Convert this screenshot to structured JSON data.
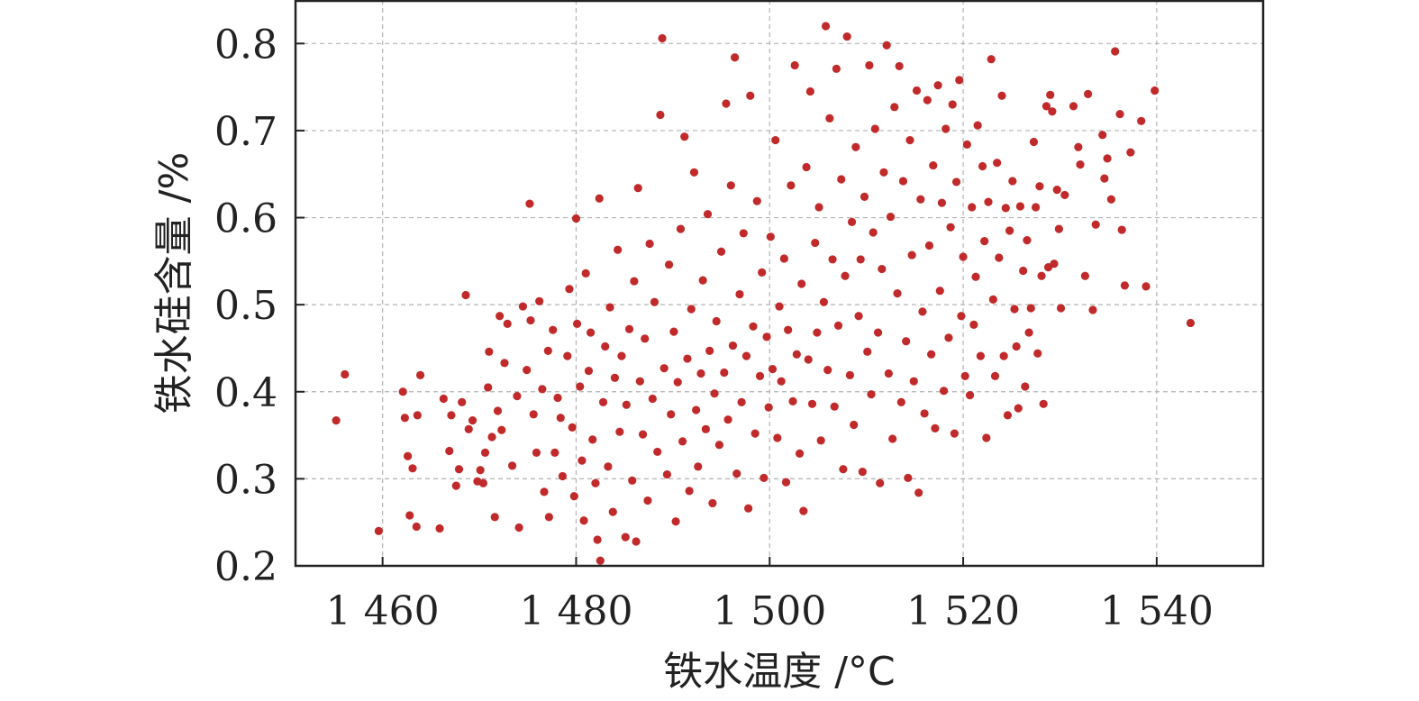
{
  "chart_data": {
    "type": "scatter",
    "xlabel": "铁水温度 /°C",
    "ylabel": "铁水硅含量 /%",
    "xlim": [
      1451,
      1551
    ],
    "ylim": [
      0.2,
      0.85
    ],
    "x_ticks": [
      1460,
      1480,
      1500,
      1520,
      1540
    ],
    "x_tick_labels": [
      "1 460",
      "1 480",
      "1 500",
      "1 520",
      "1 540"
    ],
    "y_ticks": [
      0.2,
      0.3,
      0.4,
      0.5,
      0.6,
      0.7,
      0.8
    ],
    "y_tick_labels": [
      "0.2",
      "0.3",
      "0.4",
      "0.5",
      "0.6",
      "0.7",
      "0.8"
    ],
    "grid": true,
    "point_color": "#c12a2a",
    "series": [
      {
        "values": [
          [
            1455.2,
            0.367
          ],
          [
            1456.1,
            0.42
          ],
          [
            1459.6,
            0.24
          ],
          [
            1462.1,
            0.4
          ],
          [
            1462.3,
            0.37
          ],
          [
            1462.6,
            0.326
          ],
          [
            1462.8,
            0.258
          ],
          [
            1463.1,
            0.312
          ],
          [
            1463.5,
            0.245
          ],
          [
            1463.9,
            0.419
          ],
          [
            1463.6,
            0.373
          ],
          [
            1465.9,
            0.243
          ],
          [
            1466.3,
            0.392
          ],
          [
            1466.9,
            0.332
          ],
          [
            1467.1,
            0.373
          ],
          [
            1467.6,
            0.292
          ],
          [
            1467.9,
            0.311
          ],
          [
            1468.2,
            0.388
          ],
          [
            1468.6,
            0.511
          ],
          [
            1468.9,
            0.357
          ],
          [
            1469.3,
            0.367
          ],
          [
            1469.8,
            0.297
          ],
          [
            1470.1,
            0.31
          ],
          [
            1470.4,
            0.295
          ],
          [
            1470.6,
            0.33
          ],
          [
            1470.9,
            0.405
          ],
          [
            1471.0,
            0.446
          ],
          [
            1471.3,
            0.348
          ],
          [
            1471.6,
            0.256
          ],
          [
            1471.9,
            0.378
          ],
          [
            1472.1,
            0.487
          ],
          [
            1472.3,
            0.356
          ],
          [
            1472.6,
            0.433
          ],
          [
            1472.9,
            0.478
          ],
          [
            1473.4,
            0.315
          ],
          [
            1473.9,
            0.395
          ],
          [
            1474.1,
            0.244
          ],
          [
            1474.5,
            0.498
          ],
          [
            1474.9,
            0.425
          ],
          [
            1475.2,
            0.616
          ],
          [
            1475.3,
            0.482
          ],
          [
            1475.6,
            0.374
          ],
          [
            1475.9,
            0.33
          ],
          [
            1476.2,
            0.504
          ],
          [
            1476.5,
            0.403
          ],
          [
            1476.7,
            0.285
          ],
          [
            1477.1,
            0.447
          ],
          [
            1477.2,
            0.256
          ],
          [
            1477.6,
            0.471
          ],
          [
            1477.8,
            0.33
          ],
          [
            1478.1,
            0.393
          ],
          [
            1478.4,
            0.37
          ],
          [
            1478.6,
            0.303
          ],
          [
            1479.1,
            0.441
          ],
          [
            1479.3,
            0.518
          ],
          [
            1479.6,
            0.359
          ],
          [
            1479.8,
            0.28
          ],
          [
            1480.0,
            0.599
          ],
          [
            1480.1,
            0.478
          ],
          [
            1480.4,
            0.406
          ],
          [
            1480.6,
            0.321
          ],
          [
            1480.8,
            0.252
          ],
          [
            1481.0,
            0.536
          ],
          [
            1481.3,
            0.424
          ],
          [
            1481.5,
            0.468
          ],
          [
            1481.7,
            0.345
          ],
          [
            1482.0,
            0.295
          ],
          [
            1482.2,
            0.23
          ],
          [
            1482.4,
            0.622
          ],
          [
            1482.5,
            0.206
          ],
          [
            1482.8,
            0.388
          ],
          [
            1483.0,
            0.452
          ],
          [
            1483.3,
            0.314
          ],
          [
            1483.5,
            0.497
          ],
          [
            1483.8,
            0.262
          ],
          [
            1484.0,
            0.416
          ],
          [
            1484.3,
            0.563
          ],
          [
            1484.5,
            0.354
          ],
          [
            1484.7,
            0.441
          ],
          [
            1485.1,
            0.233
          ],
          [
            1485.2,
            0.385
          ],
          [
            1485.5,
            0.472
          ],
          [
            1485.8,
            0.298
          ],
          [
            1486.0,
            0.527
          ],
          [
            1486.2,
            0.228
          ],
          [
            1486.4,
            0.634
          ],
          [
            1486.6,
            0.412
          ],
          [
            1486.9,
            0.351
          ],
          [
            1487.1,
            0.461
          ],
          [
            1487.4,
            0.275
          ],
          [
            1487.6,
            0.57
          ],
          [
            1487.9,
            0.392
          ],
          [
            1488.1,
            0.503
          ],
          [
            1488.4,
            0.331
          ],
          [
            1488.7,
            0.718
          ],
          [
            1488.9,
            0.806
          ],
          [
            1489.1,
            0.427
          ],
          [
            1489.4,
            0.305
          ],
          [
            1489.6,
            0.546
          ],
          [
            1489.8,
            0.374
          ],
          [
            1490.1,
            0.469
          ],
          [
            1490.3,
            0.251
          ],
          [
            1490.5,
            0.411
          ],
          [
            1490.8,
            0.587
          ],
          [
            1491.0,
            0.343
          ],
          [
            1491.2,
            0.693
          ],
          [
            1491.5,
            0.438
          ],
          [
            1491.7,
            0.286
          ],
          [
            1491.9,
            0.495
          ],
          [
            1492.2,
            0.652
          ],
          [
            1492.4,
            0.379
          ],
          [
            1492.6,
            0.314
          ],
          [
            1492.9,
            0.421
          ],
          [
            1493.1,
            0.528
          ],
          [
            1493.4,
            0.357
          ],
          [
            1493.6,
            0.604
          ],
          [
            1493.8,
            0.447
          ],
          [
            1494.1,
            0.272
          ],
          [
            1494.3,
            0.398
          ],
          [
            1494.5,
            0.481
          ],
          [
            1494.8,
            0.339
          ],
          [
            1495.0,
            0.561
          ],
          [
            1495.3,
            0.422
          ],
          [
            1495.5,
            0.731
          ],
          [
            1495.7,
            0.368
          ],
          [
            1496.0,
            0.637
          ],
          [
            1496.2,
            0.453
          ],
          [
            1496.4,
            0.784
          ],
          [
            1496.6,
            0.306
          ],
          [
            1496.9,
            0.512
          ],
          [
            1497.1,
            0.388
          ],
          [
            1497.3,
            0.582
          ],
          [
            1497.6,
            0.441
          ],
          [
            1497.8,
            0.266
          ],
          [
            1498.0,
            0.74
          ],
          [
            1498.3,
            0.475
          ],
          [
            1498.5,
            0.352
          ],
          [
            1498.7,
            0.619
          ],
          [
            1499.0,
            0.418
          ],
          [
            1499.2,
            0.537
          ],
          [
            1499.4,
            0.301
          ],
          [
            1499.7,
            0.463
          ],
          [
            1499.9,
            0.382
          ],
          [
            1500.1,
            0.578
          ],
          [
            1500.3,
            0.426
          ],
          [
            1500.6,
            0.689
          ],
          [
            1500.8,
            0.347
          ],
          [
            1501.0,
            0.498
          ],
          [
            1501.2,
            0.412
          ],
          [
            1501.5,
            0.553
          ],
          [
            1501.7,
            0.296
          ],
          [
            1501.9,
            0.471
          ],
          [
            1502.2,
            0.637
          ],
          [
            1502.4,
            0.389
          ],
          [
            1502.6,
            0.775
          ],
          [
            1502.8,
            0.443
          ],
          [
            1503.1,
            0.329
          ],
          [
            1503.3,
            0.524
          ],
          [
            1503.5,
            0.263
          ],
          [
            1503.8,
            0.658
          ],
          [
            1504.0,
            0.437
          ],
          [
            1504.2,
            0.745
          ],
          [
            1504.4,
            0.386
          ],
          [
            1504.7,
            0.571
          ],
          [
            1504.9,
            0.468
          ],
          [
            1505.1,
            0.612
          ],
          [
            1505.3,
            0.344
          ],
          [
            1505.6,
            0.503
          ],
          [
            1505.8,
            0.82
          ],
          [
            1506.0,
            0.425
          ],
          [
            1506.2,
            0.714
          ],
          [
            1506.5,
            0.552
          ],
          [
            1506.7,
            0.383
          ],
          [
            1506.9,
            0.771
          ],
          [
            1507.1,
            0.476
          ],
          [
            1507.4,
            0.644
          ],
          [
            1507.6,
            0.311
          ],
          [
            1507.8,
            0.533
          ],
          [
            1508.0,
            0.808
          ],
          [
            1508.3,
            0.419
          ],
          [
            1508.5,
            0.595
          ],
          [
            1508.7,
            0.362
          ],
          [
            1508.9,
            0.681
          ],
          [
            1509.2,
            0.487
          ],
          [
            1509.4,
            0.552
          ],
          [
            1509.6,
            0.308
          ],
          [
            1509.8,
            0.624
          ],
          [
            1510.1,
            0.446
          ],
          [
            1510.3,
            0.775
          ],
          [
            1510.5,
            0.397
          ],
          [
            1510.7,
            0.583
          ],
          [
            1510.9,
            0.702
          ],
          [
            1511.2,
            0.468
          ],
          [
            1511.4,
            0.295
          ],
          [
            1511.6,
            0.541
          ],
          [
            1511.8,
            0.652
          ],
          [
            1512.1,
            0.798
          ],
          [
            1512.3,
            0.421
          ],
          [
            1512.5,
            0.601
          ],
          [
            1512.7,
            0.346
          ],
          [
            1512.9,
            0.727
          ],
          [
            1513.2,
            0.513
          ],
          [
            1513.4,
            0.774
          ],
          [
            1513.6,
            0.388
          ],
          [
            1513.8,
            0.642
          ],
          [
            1514.1,
            0.458
          ],
          [
            1514.3,
            0.301
          ],
          [
            1514.5,
            0.689
          ],
          [
            1514.7,
            0.557
          ],
          [
            1514.9,
            0.412
          ],
          [
            1515.2,
            0.746
          ],
          [
            1515.4,
            0.284
          ],
          [
            1515.6,
            0.621
          ],
          [
            1515.8,
            0.492
          ],
          [
            1516.0,
            0.375
          ],
          [
            1516.3,
            0.735
          ],
          [
            1516.5,
            0.568
          ],
          [
            1516.7,
            0.443
          ],
          [
            1516.9,
            0.66
          ],
          [
            1517.1,
            0.358
          ],
          [
            1517.4,
            0.752
          ],
          [
            1517.6,
            0.516
          ],
          [
            1517.8,
            0.617
          ],
          [
            1518.0,
            0.401
          ],
          [
            1518.2,
            0.702
          ],
          [
            1518.5,
            0.462
          ],
          [
            1518.7,
            0.589
          ],
          [
            1518.9,
            0.73
          ],
          [
            1519.1,
            0.352
          ],
          [
            1519.3,
            0.641
          ],
          [
            1519.6,
            0.758
          ],
          [
            1519.8,
            0.487
          ],
          [
            1520.0,
            0.555
          ],
          [
            1520.2,
            0.418
          ],
          [
            1520.4,
            0.684
          ],
          [
            1520.7,
            0.396
          ],
          [
            1520.9,
            0.612
          ],
          [
            1521.1,
            0.477
          ],
          [
            1521.3,
            0.532
          ],
          [
            1521.5,
            0.706
          ],
          [
            1521.8,
            0.441
          ],
          [
            1522.0,
            0.659
          ],
          [
            1522.2,
            0.573
          ],
          [
            1522.4,
            0.347
          ],
          [
            1522.6,
            0.618
          ],
          [
            1522.9,
            0.782
          ],
          [
            1523.1,
            0.506
          ],
          [
            1523.3,
            0.418
          ],
          [
            1523.5,
            0.663
          ],
          [
            1523.7,
            0.554
          ],
          [
            1524.0,
            0.74
          ],
          [
            1524.2,
            0.441
          ],
          [
            1524.4,
            0.611
          ],
          [
            1524.6,
            0.373
          ],
          [
            1524.8,
            0.585
          ],
          [
            1525.1,
            0.642
          ],
          [
            1525.3,
            0.495
          ],
          [
            1525.5,
            0.452
          ],
          [
            1525.7,
            0.381
          ],
          [
            1525.9,
            0.613
          ],
          [
            1526.2,
            0.539
          ],
          [
            1526.4,
            0.406
          ],
          [
            1526.6,
            0.574
          ],
          [
            1526.8,
            0.468
          ],
          [
            1527.0,
            0.496
          ],
          [
            1527.3,
            0.687
          ],
          [
            1527.5,
            0.612
          ],
          [
            1527.7,
            0.444
          ],
          [
            1527.9,
            0.636
          ],
          [
            1528.1,
            0.533
          ],
          [
            1528.3,
            0.386
          ],
          [
            1528.6,
            0.728
          ],
          [
            1528.8,
            0.543
          ],
          [
            1529.0,
            0.741
          ],
          [
            1529.2,
            0.722
          ],
          [
            1529.4,
            0.547
          ],
          [
            1529.7,
            0.632
          ],
          [
            1529.9,
            0.587
          ],
          [
            1530.1,
            0.496
          ],
          [
            1530.5,
            0.626
          ],
          [
            1531.4,
            0.728
          ],
          [
            1531.9,
            0.681
          ],
          [
            1532.1,
            0.661
          ],
          [
            1532.6,
            0.533
          ],
          [
            1532.9,
            0.742
          ],
          [
            1533.4,
            0.494
          ],
          [
            1533.7,
            0.592
          ],
          [
            1534.4,
            0.695
          ],
          [
            1534.6,
            0.645
          ],
          [
            1534.9,
            0.668
          ],
          [
            1535.3,
            0.621
          ],
          [
            1535.7,
            0.791
          ],
          [
            1536.2,
            0.719
          ],
          [
            1536.4,
            0.586
          ],
          [
            1536.7,
            0.522
          ],
          [
            1537.3,
            0.675
          ],
          [
            1538.4,
            0.711
          ],
          [
            1538.9,
            0.521
          ],
          [
            1539.8,
            0.746
          ],
          [
            1543.5,
            0.479
          ]
        ]
      }
    ]
  }
}
